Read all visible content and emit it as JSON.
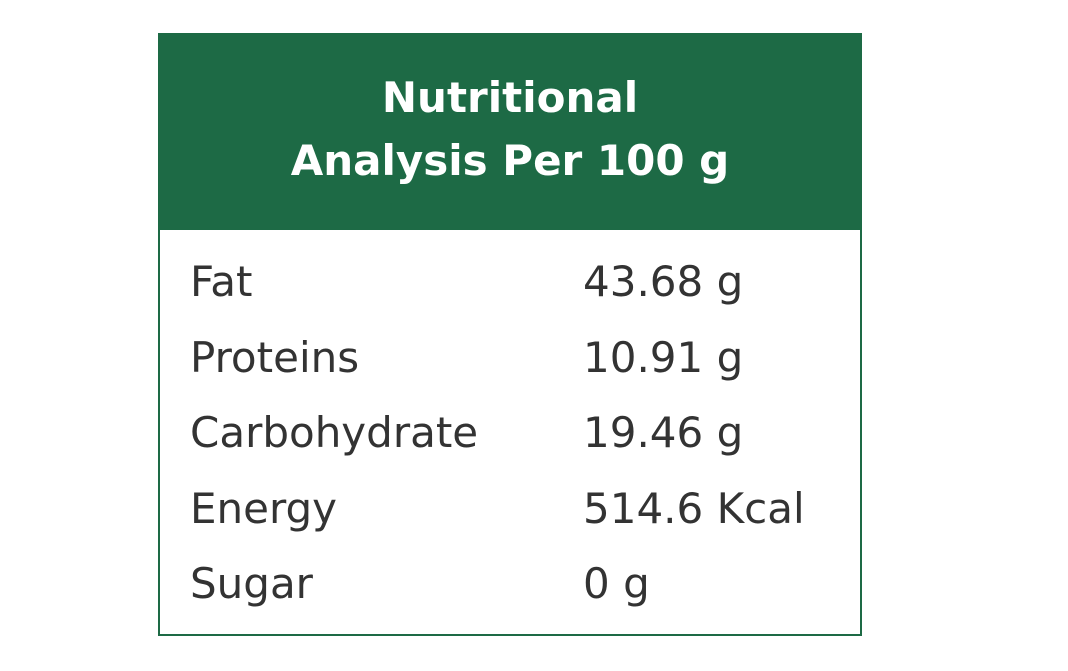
{
  "header": {
    "title": [
      "Nutritional",
      "Analysis Per 100 g"
    ]
  },
  "table": {
    "rows": [
      [
        "Fat",
        "43.68 g"
      ],
      [
        "Proteins",
        "10.91 g"
      ],
      [
        "Carbohydrate",
        "19.46 g"
      ],
      [
        "Energy",
        "514.6 Kcal"
      ],
      [
        "Sugar",
        "0 g"
      ]
    ]
  }
}
